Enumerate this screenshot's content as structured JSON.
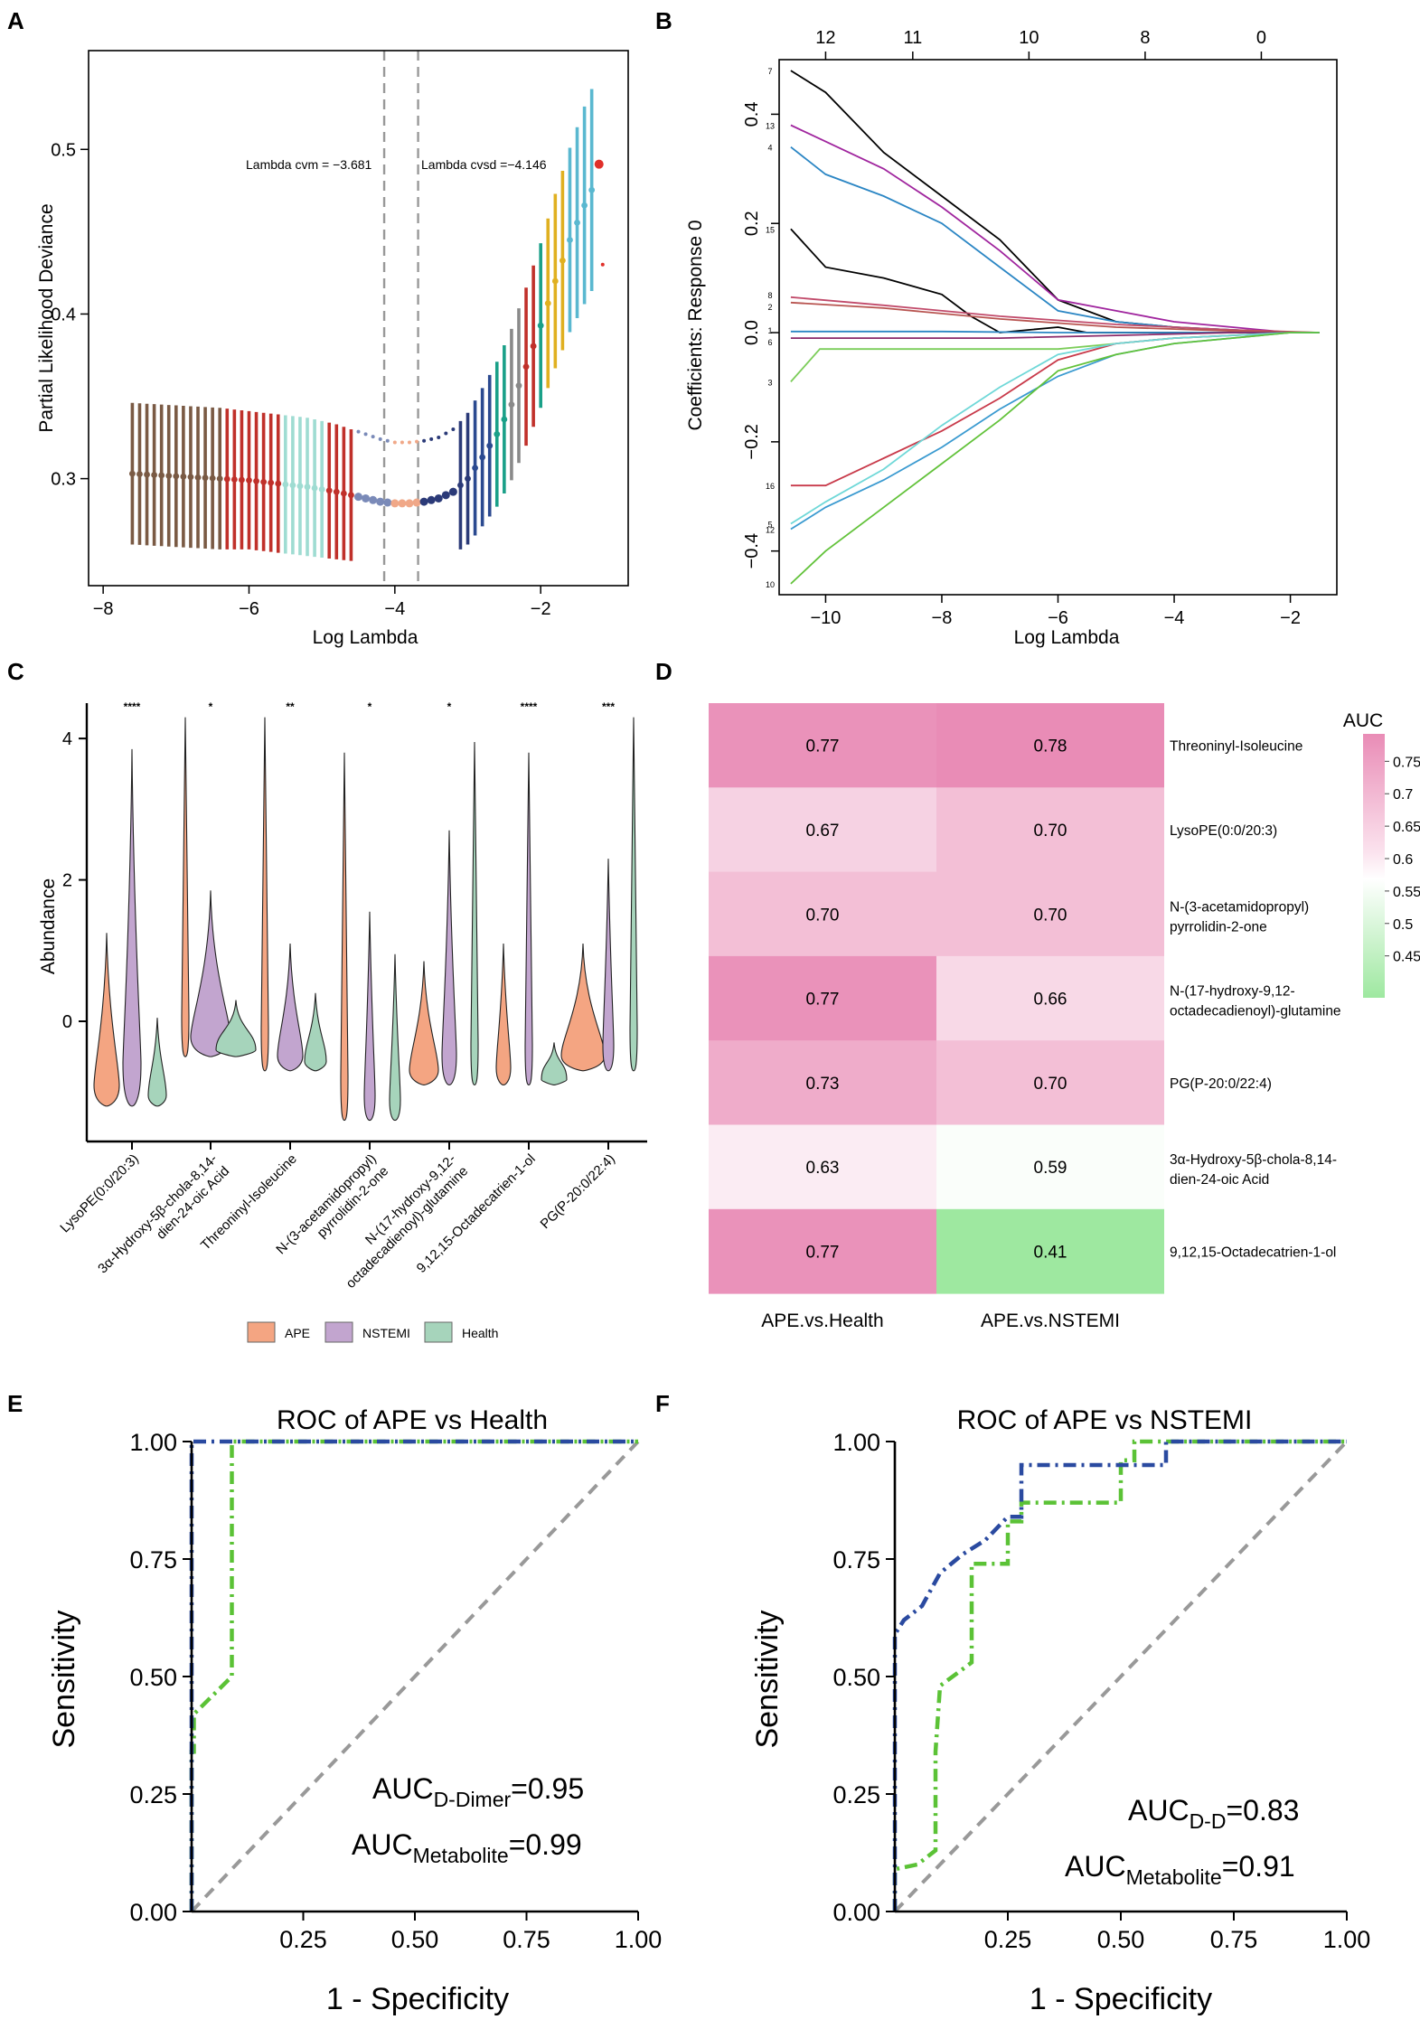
{
  "panels": {
    "A": {
      "letter": "A",
      "xlabel": "Log Lambda",
      "ylabel": "Partial Likelihood Deviance",
      "xticks": [
        -8,
        -6,
        -4,
        -2
      ],
      "yticks": [
        0.3,
        0.4,
        0.5
      ],
      "xlim": [
        -8.2,
        -0.8
      ],
      "ylim": [
        0.235,
        0.56
      ],
      "vlines": [
        -4.146,
        -3.681
      ],
      "annotation_cvm": "Lambda cvm = −3.681",
      "annotation_cvsd": "Lambda cvsd =−4.146"
    },
    "B": {
      "letter": "B",
      "xlabel": "Log Lambda",
      "ylabel": "Coefficients: Response 0",
      "xticks": [
        -10,
        -8,
        -6,
        -4,
        -2
      ],
      "yticks": [
        -0.4,
        -0.2,
        0.0,
        0.2,
        0.4
      ],
      "xlim": [
        -10.8,
        -1.2
      ],
      "ylim": [
        -0.48,
        0.5
      ],
      "top_tick_positions": [
        -10,
        -8.5,
        -6.5,
        -4.5,
        -2.5
      ],
      "top_labels": [
        "12",
        "11",
        "10",
        "8",
        "0"
      ],
      "line_labels": [
        "7",
        "13",
        "4",
        "15",
        "8",
        "2",
        "1",
        "6",
        "3",
        "16",
        "5",
        "12",
        "10"
      ]
    },
    "C": {
      "letter": "C",
      "ylabel": "Abundance",
      "yticks": [
        0,
        2,
        4
      ],
      "ylim": [
        -1.7,
        4.5
      ],
      "categories": [
        "LysoPE(0:0/20:3)",
        "3α-Hydroxy-5β-chola-8,14-dien-24-oic Acid",
        "Threoninyl-Isoleucine",
        "N-(3-acetamidopropyl)pyrrolidin-2-one",
        "N-(17-hydroxy-9,12-octadecadienoyl)-glutamine",
        "9,12,15-Octadecatrien-1-ol",
        "PG(P-20:0/22:4)"
      ],
      "cat_line1": [
        "LysoPE(0:0/20:3)",
        "3α-Hydroxy-5β-chola-8,14-",
        "Threoninyl-Isoleucine",
        "N-(3-acetamidopropyl)",
        "N-(17-hydroxy-9,12-",
        "9,12,15-Octadecatrien-1-ol",
        "PG(P-20:0/22:4)"
      ],
      "cat_line2": [
        "",
        "dien-24-oic Acid",
        "",
        "pyrrolidin-2-one",
        "octadecadienoyl)-glutamine",
        "",
        ""
      ],
      "significance": [
        "****",
        "*",
        "**",
        "*",
        "*",
        "****",
        "***"
      ],
      "legend": [
        "APE",
        "NSTEMI",
        "Health"
      ],
      "group_colors": [
        "#f4a582",
        "#c2a5cf",
        "#a6d4bb"
      ]
    },
    "D": {
      "letter": "D",
      "colorbar_title": "AUC",
      "colorbar_ticks": [
        "0.75",
        "0.7",
        "0.65",
        "0.6",
        "0.55",
        "0.5",
        "0.45"
      ],
      "columns": [
        "APE.vs.Health",
        "APE.vs.NSTEMI"
      ],
      "row_line1": [
        "Threoninyl-Isoleucine",
        "LysoPE(0:0/20:3)",
        "N-(3-acetamidopropyl)",
        "N-(17-hydroxy-9,12-",
        "PG(P-20:0/22:4)",
        "3α-Hydroxy-5β-chola-8,14-",
        "9,12,15-Octadecatrien-1-ol"
      ],
      "row_line2": [
        "",
        "",
        "pyrrolidin-2-one",
        "octadecadienoyl)-glutamine",
        "",
        "dien-24-oic Acid",
        ""
      ],
      "cells": [
        [
          "0.77",
          "0.78"
        ],
        [
          "0.67",
          "0.70"
        ],
        [
          "0.70",
          "0.70"
        ],
        [
          "0.77",
          "0.66"
        ],
        [
          "0.73",
          "0.70"
        ],
        [
          "0.63",
          "0.59"
        ],
        [
          "0.77",
          "0.41"
        ]
      ]
    },
    "E": {
      "letter": "E",
      "title": "ROC of APE vs Health",
      "xlabel": "1 - Specificity",
      "ylabel": "Sensitivity",
      "yticks": [
        "0.00",
        "0.25",
        "0.50",
        "0.75",
        "1.00"
      ],
      "xticks": [
        "0.25",
        "0.50",
        "0.75",
        "1.00"
      ],
      "auc1_main": "AUC",
      "auc1_sub": "D-Dimer",
      "auc1_val": "=0.95",
      "auc2_main": "AUC",
      "auc2_sub": "Metabolite",
      "auc2_val": "=0.99"
    },
    "F": {
      "letter": "F",
      "title": "ROC of APE vs NSTEMI",
      "xlabel": "1 - Specificity",
      "ylabel": "Sensitivity",
      "yticks": [
        "0.00",
        "0.25",
        "0.50",
        "0.75",
        "1.00"
      ],
      "xticks": [
        "0.25",
        "0.50",
        "0.75",
        "1.00"
      ],
      "auc1_main": "AUC",
      "auc1_sub": "D-D",
      "auc1_val": "=0.83",
      "auc2_main": "AUC",
      "auc2_sub": "Metabolite",
      "auc2_val": "=0.91"
    }
  },
  "colors": {
    "roc_green": "#5bc236",
    "roc_blue": "#2a4aa0",
    "diagonal": "#999999",
    "heat_high": "#e98cb6",
    "heat_mid": "#ffffff",
    "heat_low": "#9ee8a0"
  },
  "chart_data": [
    {
      "type": "line",
      "panel": "A",
      "title": "",
      "xlabel": "Log Lambda",
      "ylabel": "Partial Likelihood Deviance",
      "xlim": [
        -8.2,
        -0.8
      ],
      "ylim": [
        0.235,
        0.56
      ],
      "series": [
        {
          "name": "mean deviance",
          "x": [
            -7.6,
            -7.2,
            -6.8,
            -6.4,
            -6.0,
            -5.6,
            -5.2,
            -4.8,
            -4.6,
            -4.4,
            -4.2,
            -4.0,
            -3.8,
            -3.6,
            -3.4,
            -3.2,
            -3.0,
            -2.8,
            -2.6,
            -2.4,
            -2.2,
            -2.0,
            -1.8,
            -1.6,
            -1.4,
            -1.25
          ],
          "y": [
            0.303,
            0.302,
            0.301,
            0.3,
            0.299,
            0.297,
            0.295,
            0.292,
            0.29,
            0.288,
            0.286,
            0.285,
            0.285,
            0.286,
            0.288,
            0.292,
            0.3,
            0.313,
            0.327,
            0.345,
            0.368,
            0.393,
            0.42,
            0.445,
            0.466,
            0.48
          ]
        }
      ],
      "error_half_width": [
        0.043,
        0.043,
        0.043,
        0.043,
        0.042,
        0.042,
        0.042,
        0.041,
        0.04,
        0.039,
        0.038,
        0.037,
        0.037,
        0.037,
        0.037,
        0.038,
        0.04,
        0.042,
        0.044,
        0.046,
        0.048,
        0.05,
        0.053,
        0.056,
        0.06,
        0.062
      ]
    },
    {
      "type": "line",
      "panel": "B",
      "title": "",
      "xlabel": "Log Lambda",
      "ylabel": "Coefficients: Response 0",
      "xlim": [
        -10.8,
        -1.2
      ],
      "ylim": [
        -0.48,
        0.5
      ],
      "series": [
        {
          "name": "7",
          "color": "#000000",
          "x": [
            -10.6,
            -10,
            -9,
            -8,
            -7,
            -6,
            -5,
            -4,
            -3,
            -2,
            -1.5
          ],
          "y": [
            0.48,
            0.44,
            0.33,
            0.25,
            0.17,
            0.06,
            0.02,
            0.01,
            0.005,
            0.0,
            0.0
          ]
        },
        {
          "name": "13",
          "color": "#a0259e",
          "x": [
            -10.6,
            -10,
            -9,
            -8,
            -7,
            -6,
            -5,
            -4,
            -3,
            -2,
            -1.5
          ],
          "y": [
            0.38,
            0.35,
            0.3,
            0.23,
            0.15,
            0.06,
            0.04,
            0.02,
            0.01,
            0.0,
            0.0
          ]
        },
        {
          "name": "4",
          "color": "#2b86c4",
          "x": [
            -10.6,
            -10,
            -9,
            -8,
            -7,
            -6,
            -5,
            -4,
            -3,
            -2,
            -1.5
          ],
          "y": [
            0.34,
            0.29,
            0.25,
            0.2,
            0.12,
            0.04,
            0.02,
            0.01,
            0.005,
            0.0,
            0.0
          ]
        },
        {
          "name": "15",
          "color": "#000000",
          "x": [
            -10.6,
            -10,
            -9,
            -8,
            -7.5,
            -7,
            -6.5,
            -6,
            -5.5,
            -5,
            -3,
            -2,
            -1.5
          ],
          "y": [
            0.19,
            0.12,
            0.1,
            0.07,
            0.03,
            0.0,
            0.005,
            0.01,
            0.0,
            0.0,
            0.0,
            0.0,
            0.0
          ]
        },
        {
          "name": "8",
          "color": "#c14a6a",
          "x": [
            -10.6,
            -9,
            -7,
            -5,
            -3,
            -1.5
          ],
          "y": [
            0.065,
            0.05,
            0.03,
            0.015,
            0.005,
            0.0
          ]
        },
        {
          "name": "2",
          "color": "#b85450",
          "x": [
            -10.6,
            -9,
            -7,
            -5,
            -3,
            -1.5
          ],
          "y": [
            0.055,
            0.045,
            0.025,
            0.01,
            0.003,
            0.0
          ]
        },
        {
          "name": "1",
          "color": "#2b86c4",
          "x": [
            -10.6,
            -8,
            -6,
            -4,
            -2,
            -1.5
          ],
          "y": [
            0.002,
            0.002,
            0.0,
            0.0,
            0.0,
            0.0
          ]
        },
        {
          "name": "6",
          "color": "#8b2a6a",
          "x": [
            -10.6,
            -9,
            -7,
            -5,
            -3,
            -1.5
          ],
          "y": [
            -0.01,
            -0.01,
            -0.01,
            -0.005,
            0.0,
            0.0
          ]
        },
        {
          "name": "3",
          "color": "#7ccd5a",
          "x": [
            -10.6,
            -10.1,
            -10,
            -8,
            -6,
            -4,
            -2,
            -1.5
          ],
          "y": [
            -0.09,
            -0.03,
            -0.03,
            -0.03,
            -0.03,
            -0.01,
            0.0,
            0.0
          ]
        },
        {
          "name": "16",
          "color": "#c83a4a",
          "x": [
            -10.6,
            -10,
            -9,
            -8,
            -7,
            -6,
            -5,
            -4,
            -3,
            -2,
            -1.5
          ],
          "y": [
            -0.28,
            -0.28,
            -0.23,
            -0.18,
            -0.12,
            -0.05,
            -0.02,
            -0.01,
            -0.005,
            0.0,
            0.0
          ]
        },
        {
          "name": "5",
          "color": "#6fd8d8",
          "x": [
            -10.6,
            -10,
            -9,
            -8,
            -7,
            -6,
            -5,
            -4,
            -3,
            -2,
            -1.5
          ],
          "y": [
            -0.35,
            -0.31,
            -0.25,
            -0.17,
            -0.1,
            -0.04,
            -0.02,
            -0.01,
            -0.005,
            0.0,
            0.0
          ]
        },
        {
          "name": "12",
          "color": "#3a9ad0",
          "x": [
            -10.6,
            -10,
            -9,
            -8,
            -7,
            -6,
            -5,
            -4,
            -3,
            -2,
            -1.5
          ],
          "y": [
            -0.36,
            -0.32,
            -0.27,
            -0.21,
            -0.14,
            -0.08,
            -0.04,
            -0.02,
            -0.01,
            0.0,
            0.0
          ]
        },
        {
          "name": "10",
          "color": "#62c23a",
          "x": [
            -10.6,
            -10,
            -9,
            -8,
            -7,
            -6,
            -5,
            -4,
            -3,
            -2,
            -1.5
          ],
          "y": [
            -0.46,
            -0.4,
            -0.32,
            -0.24,
            -0.16,
            -0.07,
            -0.04,
            -0.02,
            -0.01,
            0.0,
            0.0
          ]
        }
      ]
    },
    {
      "type": "violin",
      "panel": "C",
      "ylabel": "Abundance",
      "ylim": [
        -1.7,
        4.5
      ],
      "categories": [
        "LysoPE(0:0/20:3)",
        "3α-Hydroxy-5β-chola-8,14-dien-24-oic Acid",
        "Threoninyl-Isoleucine",
        "N-(3-acetamidopropyl)pyrrolidin-2-one",
        "N-(17-hydroxy-9,12-octadecadienoyl)-glutamine",
        "9,12,15-Octadecatrien-1-ol",
        "PG(P-20:0/22:4)"
      ],
      "series": [
        {
          "name": "APE",
          "min": [
            -1.2,
            -0.5,
            -0.7,
            -1.4,
            -0.9,
            -0.9,
            -0.7
          ],
          "max": [
            1.25,
            4.3,
            4.3,
            3.8,
            0.85,
            1.1,
            1.1
          ]
        },
        {
          "name": "NSTEMI",
          "min": [
            -1.2,
            -0.5,
            -0.7,
            -1.4,
            -0.9,
            -0.9,
            -0.7
          ],
          "max": [
            3.85,
            1.85,
            1.1,
            1.55,
            2.7,
            3.8,
            2.3
          ]
        },
        {
          "name": "Health",
          "min": [
            -1.2,
            -0.5,
            -0.7,
            -1.4,
            -0.9,
            -0.9,
            -0.7
          ],
          "max": [
            0.05,
            0.3,
            0.4,
            0.95,
            3.95,
            -0.3,
            4.3
          ]
        }
      ]
    },
    {
      "type": "heatmap",
      "panel": "D",
      "colorbar_title": "AUC",
      "colorbar_range": [
        0.41,
        0.78
      ],
      "columns": [
        "APE.vs.Health",
        "APE.vs.NSTEMI"
      ],
      "rows": [
        "Threoninyl-Isoleucine",
        "LysoPE(0:0/20:3)",
        "N-(3-acetamidopropyl)pyrrolidin-2-one",
        "N-(17-hydroxy-9,12-octadecadienoyl)-glutamine",
        "PG(P-20:0/22:4)",
        "3α-Hydroxy-5β-chola-8,14-dien-24-oic Acid",
        "9,12,15-Octadecatrien-1-ol"
      ],
      "values": [
        [
          0.77,
          0.78
        ],
        [
          0.67,
          0.7
        ],
        [
          0.7,
          0.7
        ],
        [
          0.77,
          0.66
        ],
        [
          0.73,
          0.7
        ],
        [
          0.63,
          0.59
        ],
        [
          0.77,
          0.41
        ]
      ]
    },
    {
      "type": "line",
      "panel": "E",
      "title": "ROC of APE vs Health",
      "xlabel": "1 - Specificity",
      "ylabel": "Sensitivity",
      "xlim": [
        0,
        1
      ],
      "ylim": [
        0,
        1
      ],
      "series": [
        {
          "name": "D-Dimer",
          "x": [
            0,
            0,
            0.005,
            0.005,
            0.09,
            0.09,
            0.09,
            1.0
          ],
          "y": [
            0,
            0.34,
            0.34,
            0.42,
            0.5,
            0.95,
            1.0,
            1.0
          ]
        },
        {
          "name": "Metabolite",
          "x": [
            0,
            0,
            1.0
          ],
          "y": [
            0,
            1.0,
            1.0
          ]
        },
        {
          "name": "Reference",
          "x": [
            0,
            1
          ],
          "y": [
            0,
            1
          ]
        }
      ]
    },
    {
      "type": "line",
      "panel": "F",
      "title": "ROC of APE vs NSTEMI",
      "xlabel": "1 - Specificity",
      "ylabel": "Sensitivity",
      "xlim": [
        0,
        1
      ],
      "ylim": [
        0,
        1
      ],
      "series": [
        {
          "name": "D-D",
          "x": [
            0,
            0,
            0.05,
            0.09,
            0.09,
            0.1,
            0.17,
            0.17,
            0.25,
            0.25,
            0.28,
            0.28,
            0.5,
            0.5,
            0.53,
            0.53,
            1.0
          ],
          "y": [
            0,
            0.09,
            0.1,
            0.13,
            0.34,
            0.48,
            0.53,
            0.74,
            0.74,
            0.83,
            0.83,
            0.87,
            0.87,
            0.96,
            0.96,
            1.0,
            1.0
          ]
        },
        {
          "name": "Metabolite",
          "x": [
            0,
            0,
            0.02,
            0.06,
            0.1,
            0.15,
            0.2,
            0.25,
            0.28,
            0.28,
            0.36,
            0.38,
            0.6,
            0.6,
            1.0
          ],
          "y": [
            0,
            0.59,
            0.62,
            0.65,
            0.72,
            0.76,
            0.79,
            0.84,
            0.84,
            0.95,
            0.95,
            0.95,
            0.95,
            1.0,
            1.0
          ]
        },
        {
          "name": "Reference",
          "x": [
            0,
            1
          ],
          "y": [
            0,
            1
          ]
        }
      ]
    }
  ]
}
